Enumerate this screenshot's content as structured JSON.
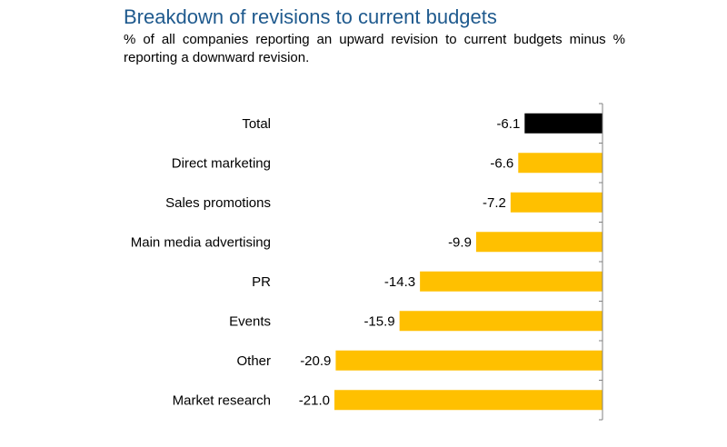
{
  "chart_data": {
    "type": "bar",
    "orientation": "horizontal",
    "title": "Breakdown of revisions to current budgets",
    "subtitle": "% of all companies reporting an upward revision to current budgets minus % reporting a downward revision.",
    "categories": [
      "Total",
      "Direct marketing",
      "Sales promotions",
      "Main media advertising",
      "PR",
      "Events",
      "Other",
      "Market research"
    ],
    "values": [
      -6.1,
      -6.6,
      -7.2,
      -9.9,
      -14.3,
      -15.9,
      -20.9,
      -21.0
    ],
    "value_labels": [
      "-6.1",
      "-6.6",
      "-7.2",
      "-9.9",
      "-14.3",
      "-15.9",
      "-20.9",
      "-21.0"
    ],
    "xlim": [
      -21.0,
      0
    ],
    "colors": {
      "highlight": "#000000",
      "default": "#ffc000",
      "axis": "#808080",
      "title": "#1f5a8e"
    },
    "highlight_category": "Total",
    "grid": false,
    "legend": "none"
  }
}
